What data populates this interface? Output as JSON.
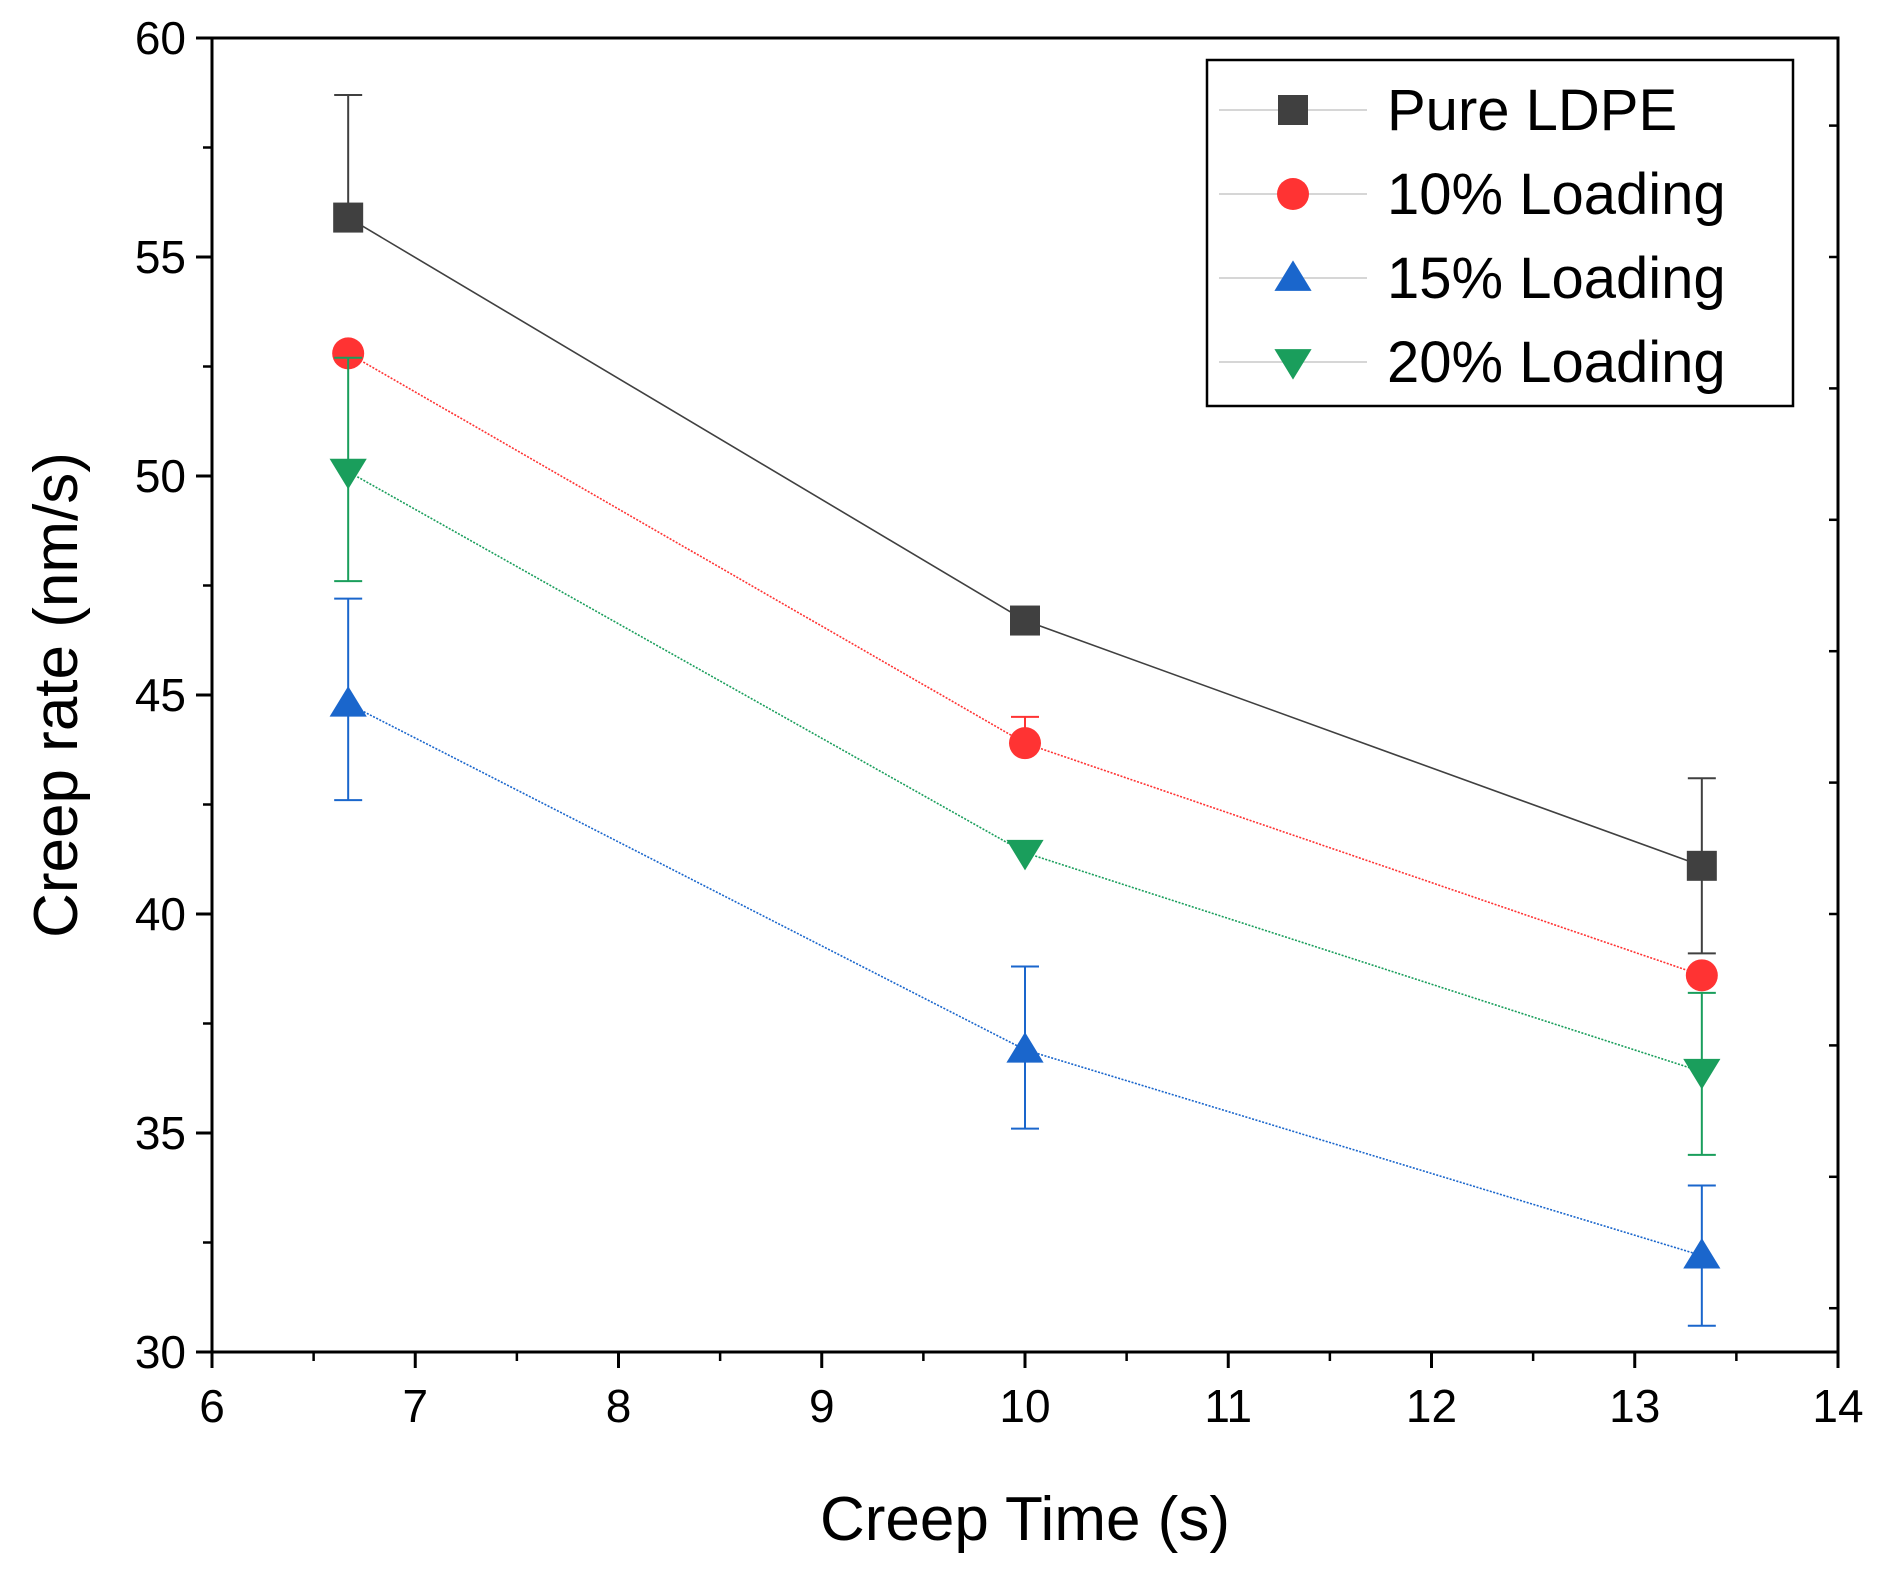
{
  "chart_data": {
    "type": "line",
    "title": "",
    "xlabel": "Creep Time (s)",
    "ylabel": "Creep rate (nm/s)",
    "xlim": [
      6,
      14
    ],
    "ylim": [
      30,
      60
    ],
    "x_ticks": [
      6,
      7,
      8,
      9,
      10,
      11,
      12,
      13,
      14
    ],
    "y_ticks": [
      30,
      35,
      40,
      45,
      50,
      55,
      60
    ],
    "x_tick_labels": [
      "6",
      "7",
      "8",
      "9",
      "10",
      "11",
      "12",
      "13",
      "14"
    ],
    "y_tick_labels": [
      "30",
      "35",
      "40",
      "45",
      "50",
      "55",
      "60"
    ],
    "grid": false,
    "legend_position": "top-right",
    "x": [
      6.67,
      10.0,
      13.33
    ],
    "series": [
      {
        "name": "Pure LDPE",
        "values": [
          55.9,
          46.7,
          41.1
        ],
        "error_upper": [
          58.7,
          null,
          43.1
        ],
        "error_lower": [
          null,
          null,
          39.1
        ],
        "color": "#404040",
        "marker": "square"
      },
      {
        "name": "10% Loading",
        "values": [
          52.8,
          43.9,
          38.6
        ],
        "error_upper": [
          null,
          44.5,
          null
        ],
        "error_lower": [
          null,
          null,
          null
        ],
        "color": "#ff3333",
        "marker": "circle"
      },
      {
        "name": "15% Loading",
        "values": [
          44.8,
          36.9,
          32.2
        ],
        "error_upper": [
          47.2,
          38.8,
          33.8
        ],
        "error_lower": [
          42.6,
          35.1,
          30.6
        ],
        "color": "#1a66cc",
        "marker": "triangle-up"
      },
      {
        "name": "20% Loading",
        "values": [
          50.1,
          41.4,
          36.4
        ],
        "error_upper": [
          52.7,
          null,
          38.2
        ],
        "error_lower": [
          47.6,
          null,
          34.5
        ],
        "color": "#1a9e5c",
        "marker": "triangle-down"
      }
    ]
  }
}
